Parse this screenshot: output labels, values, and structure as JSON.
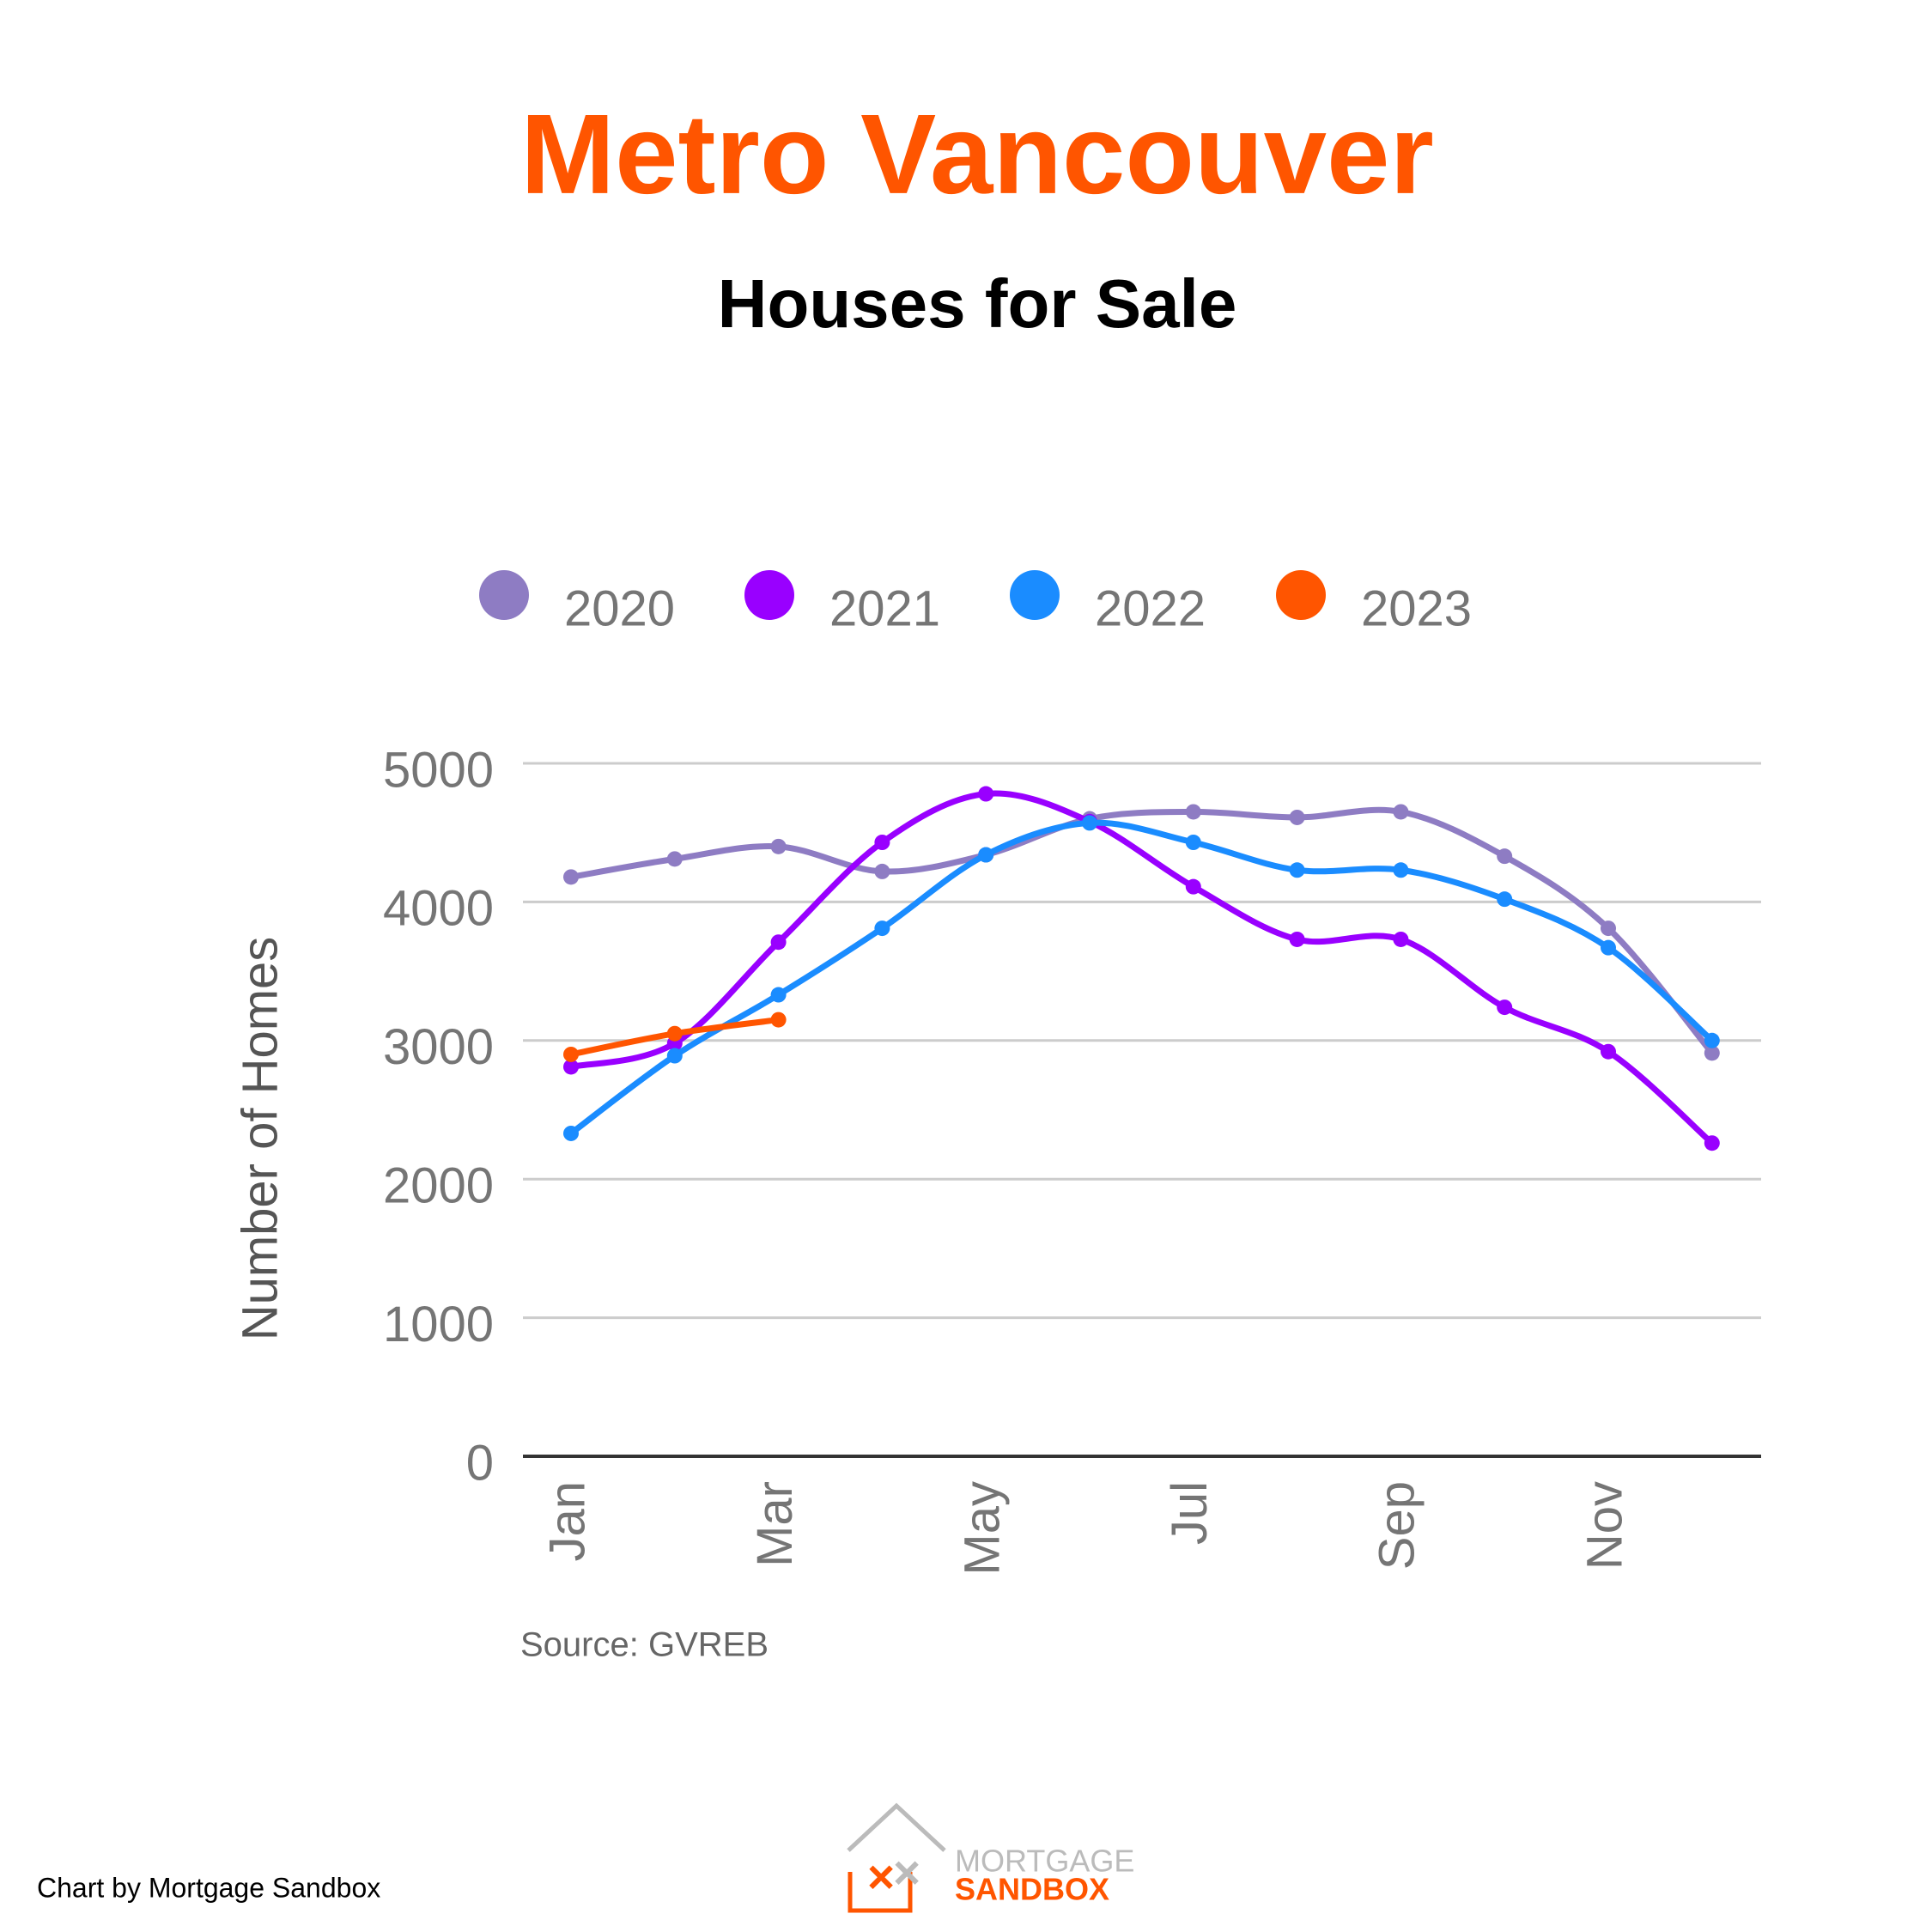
{
  "chart_data": {
    "type": "line",
    "title": "Metro Vancouver",
    "subtitle": "Houses for Sale",
    "y_label": "Number of Homes",
    "source": "Source: GVREB",
    "credit": "Chart by Mortgage Sandbox",
    "logo": [
      "MORTGAGE",
      "SANDBOX"
    ],
    "categories": [
      "Jan",
      null,
      "Mar",
      null,
      "May",
      null,
      "Jul",
      null,
      "Sep",
      null,
      "Nov",
      null
    ],
    "series": [
      {
        "name": "2020",
        "color": "#8e7cc3",
        "values": [
          4180,
          4310,
          4400,
          4220,
          4340,
          4600,
          4650,
          4610,
          4650,
          4330,
          3810,
          2910
        ]
      },
      {
        "name": "2021",
        "color": "#9900ff",
        "values": [
          2810,
          2980,
          3710,
          4430,
          4780,
          4580,
          4110,
          3730,
          3730,
          3240,
          2920,
          2260
        ]
      },
      {
        "name": "2022",
        "color": "#1a8cff",
        "values": [
          2330,
          2890,
          3330,
          3810,
          4340,
          4570,
          4430,
          4230,
          4230,
          4020,
          3670,
          3000
        ]
      },
      {
        "name": "2023",
        "color": "#ff5500",
        "values": [
          2900,
          3050,
          3150,
          null,
          null,
          null,
          null,
          null,
          null,
          null,
          null,
          null
        ]
      }
    ],
    "ylim": [
      0,
      5000
    ],
    "yticks": [
      0,
      1000,
      2000,
      3000,
      4000,
      5000
    ],
    "grid": true,
    "legend": "top"
  }
}
